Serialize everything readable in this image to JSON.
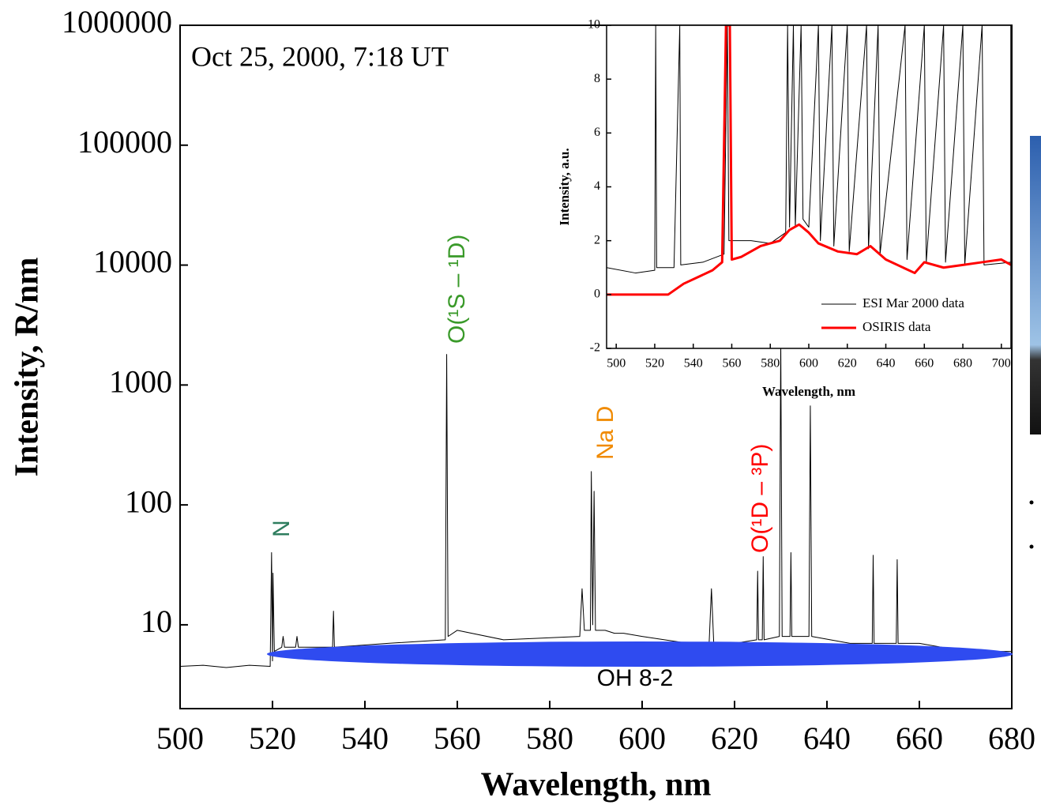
{
  "chart_data": [
    {
      "type": "line",
      "x_label": "Wavelength, nm",
      "y_label": "Intensity, R/nm",
      "log_y": true,
      "xlim": [
        500,
        680
      ],
      "xticks": [
        500,
        520,
        540,
        560,
        580,
        600,
        620,
        640,
        660,
        680
      ],
      "ylim": [
        2,
        1000000
      ],
      "yticks": [
        10,
        100,
        1000,
        10000,
        100000,
        1000000
      ],
      "annotations": [
        {
          "text": "Oct 25, 2000, 7:18 UT",
          "color": "#000000"
        },
        {
          "text": "N",
          "color": "#2e7d5e"
        },
        {
          "text": "O(¹S – ¹D)",
          "color": "#3a9a2a"
        },
        {
          "text": "Na D",
          "color": "#f08a00"
        },
        {
          "text": "O(¹D – ³P)",
          "color": "#ff0000"
        },
        {
          "text": "OH 8-2",
          "color": "#000000"
        }
      ],
      "series": [
        {
          "color": "#000000",
          "x": [
            500,
            505,
            510,
            515,
            519.5,
            519.8,
            520.0,
            520.1,
            520.4,
            522,
            522.3,
            522.6,
            525,
            525.3,
            525.6,
            533,
            533.2,
            533.4,
            545,
            557.4,
            557.7,
            558.0,
            560,
            570,
            586.5,
            587,
            587.5,
            588.8,
            589.0,
            589.3,
            589.6,
            589.9,
            592,
            594,
            596,
            600,
            610,
            614.5,
            615,
            615.5,
            620,
            624.8,
            625,
            625.2,
            626,
            626.2,
            626.4,
            629.7,
            630.0,
            630.3,
            632,
            632.2,
            632.4,
            636.1,
            636.4,
            636.7,
            645,
            649.8,
            650,
            650.2,
            655,
            655.2,
            655.4,
            660,
            670,
            680
          ],
          "values": [
            4.5,
            4.6,
            4.4,
            4.6,
            4.5,
            40,
            5,
            27,
            6,
            6.5,
            8,
            6.5,
            6.5,
            8,
            6.5,
            6.5,
            13,
            6.5,
            7,
            7.5,
            1800,
            8,
            9,
            7.5,
            8,
            20,
            9,
            9,
            190,
            10,
            130,
            9,
            9,
            8.5,
            8.5,
            8,
            7,
            7,
            20,
            7,
            7,
            7.5,
            28,
            7.5,
            7.5,
            37,
            7.5,
            8,
            2500,
            8,
            8,
            40,
            8,
            8,
            670,
            8,
            7,
            7,
            38,
            7,
            7,
            35,
            7,
            7,
            6,
            6
          ]
        }
      ]
    },
    {
      "type": "line",
      "x_label": "Wavelength, nm",
      "y_label": "Intensity, a.u.",
      "xlim": [
        495,
        705
      ],
      "xticks": [
        500,
        520,
        540,
        560,
        580,
        600,
        620,
        640,
        660,
        680,
        700
      ],
      "ylim": [
        -2,
        10
      ],
      "yticks": [
        -2,
        0,
        2,
        4,
        6,
        8,
        10
      ],
      "legend": "lower right",
      "series": [
        {
          "name": "ESI Mar 2000 data",
          "color": "#000000",
          "x": [
            495,
            510,
            520,
            520.5,
            521,
            530,
            533,
            533.5,
            545,
            556,
            557.7,
            558.5,
            570,
            580,
            588,
            589,
            590,
            592,
            593,
            596,
            597,
            600,
            605,
            606,
            612,
            613,
            620,
            621,
            630,
            631,
            636,
            637,
            650,
            651,
            660,
            661,
            670,
            671,
            680,
            681,
            690,
            691,
            705
          ],
          "values": [
            1,
            0.8,
            0.9,
            10,
            1,
            1,
            10,
            1.1,
            1.2,
            1.5,
            10,
            2,
            2,
            1.9,
            2.3,
            10,
            2.5,
            10,
            2.5,
            10,
            2.8,
            2.5,
            10,
            2,
            10,
            1.8,
            10,
            1.6,
            10,
            1.7,
            10,
            1.5,
            10,
            1.3,
            10,
            1.2,
            10,
            1.2,
            10,
            1.1,
            10,
            1.1,
            1.2
          ]
        },
        {
          "name": "OSIRIS data",
          "color": "#ff0000",
          "x": [
            495,
            527,
            535,
            550,
            555,
            557,
            559,
            560,
            565,
            575,
            585,
            590,
            595,
            600,
            605,
            615,
            625,
            632,
            640,
            655,
            660,
            670,
            680,
            690,
            700,
            705
          ],
          "values": [
            0,
            0,
            0.4,
            0.9,
            1.2,
            10,
            10,
            1.3,
            1.4,
            1.8,
            2,
            2.4,
            2.6,
            2.3,
            1.9,
            1.6,
            1.5,
            1.8,
            1.3,
            0.8,
            1.2,
            1.0,
            1.1,
            1.2,
            1.3,
            1.1
          ]
        }
      ]
    }
  ]
}
